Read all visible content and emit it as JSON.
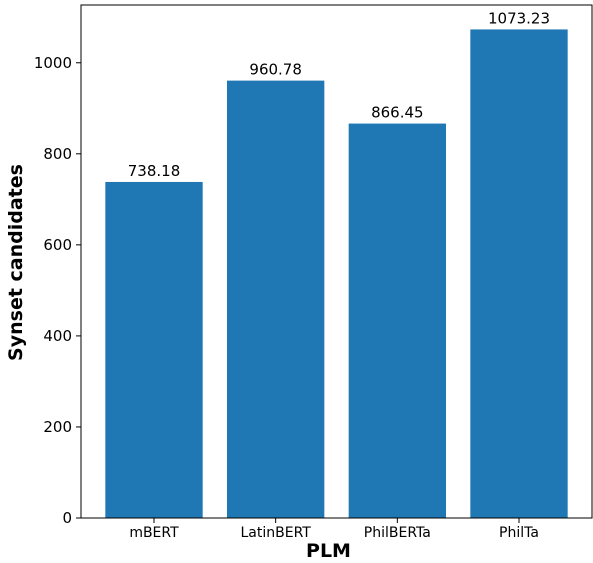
{
  "chart_data": {
    "type": "bar",
    "categories": [
      "mBERT",
      "LatinBERT",
      "PhilBERTa",
      "PhilTa"
    ],
    "values": [
      738.18,
      960.78,
      866.45,
      1073.23
    ],
    "data_labels": [
      "738.18",
      "960.78",
      "866.45",
      "1073.23"
    ],
    "title": "",
    "xlabel": "PLM",
    "ylabel": "Synset candidates",
    "ylim": [
      0,
      1126.9
    ],
    "yticks": [
      0,
      200,
      400,
      600,
      800,
      1000
    ],
    "grid": false,
    "legend": "none",
    "bar_color": "#1f77b4"
  }
}
